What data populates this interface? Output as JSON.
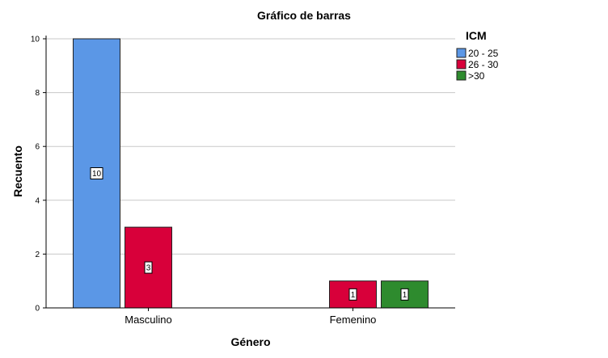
{
  "chart_data": {
    "type": "bar",
    "title": "Gráfico de barras",
    "xlabel": "Género",
    "ylabel": "Recuento",
    "categories": [
      "Masculino",
      "Femenino"
    ],
    "ylim": [
      0,
      10
    ],
    "yticks": [
      0,
      2,
      4,
      6,
      8,
      10
    ],
    "grid": true,
    "legend": {
      "title": "ICM",
      "position": "top-right"
    },
    "series": [
      {
        "name": "20 - 25",
        "color": "#5b97e6",
        "values": [
          10,
          null
        ],
        "labels": [
          "10",
          null
        ]
      },
      {
        "name": "26 - 30",
        "color": "#d8003a",
        "values": [
          3,
          1
        ],
        "labels": [
          "3",
          "1"
        ]
      },
      {
        "name": ">30",
        "color": "#2e8b2e",
        "values": [
          null,
          1
        ],
        "labels": [
          null,
          "1"
        ]
      }
    ]
  }
}
